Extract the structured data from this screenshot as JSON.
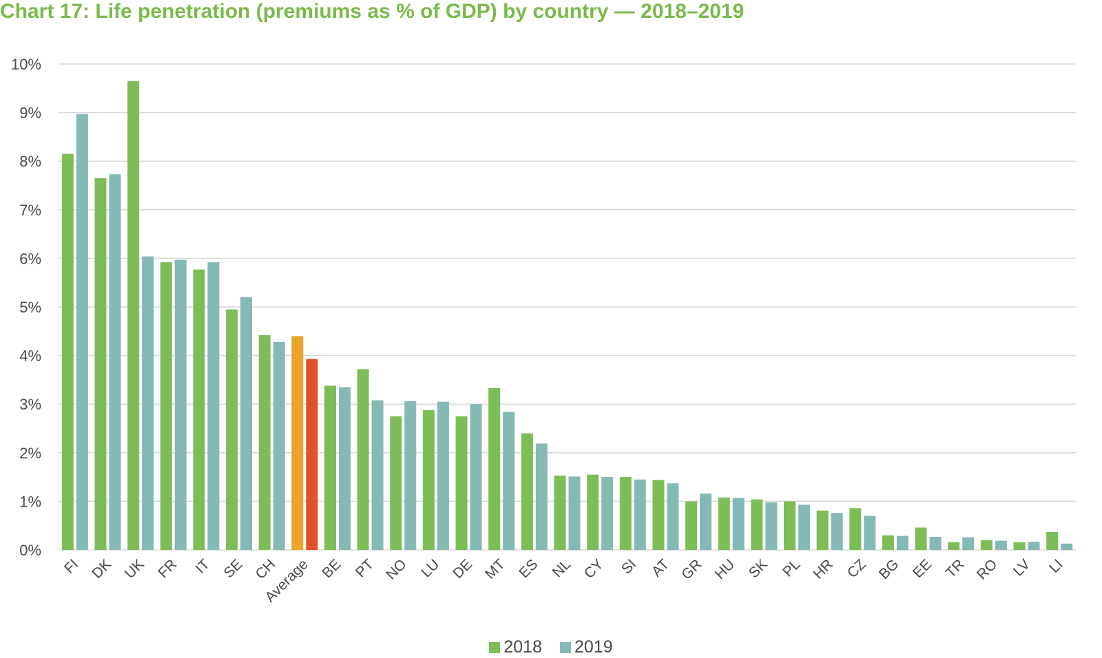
{
  "title": "Chart 17: Life penetration (premiums as % of GDP) by country — 2018–2019",
  "chart_data": {
    "type": "bar",
    "title": "Chart 17: Life penetration (premiums as % of GDP) by country — 2018–2019",
    "xlabel": "",
    "ylabel": "",
    "ylim": [
      0,
      10
    ],
    "yticks": [
      "0%",
      "1%",
      "2%",
      "3%",
      "4%",
      "5%",
      "6%",
      "7%",
      "8%",
      "9%",
      "10%"
    ],
    "grid": true,
    "legend_position": "bottom",
    "categories": [
      "FI",
      "DK",
      "UK",
      "FR",
      "IT",
      "SE",
      "CH",
      "Average",
      "BE",
      "PT",
      "NO",
      "LU",
      "DE",
      "MT",
      "ES",
      "NL",
      "CY",
      "SI",
      "AT",
      "GR",
      "HU",
      "SK",
      "PL",
      "HR",
      "CZ",
      "BG",
      "EE",
      "TR",
      "RO",
      "LV",
      "LI"
    ],
    "series": [
      {
        "name": "2018",
        "color": "#7dbd57",
        "values": [
          8.15,
          7.65,
          9.65,
          5.92,
          5.77,
          4.95,
          4.42,
          4.4,
          3.38,
          3.72,
          2.75,
          2.88,
          2.75,
          3.33,
          2.4,
          1.53,
          1.55,
          1.5,
          1.44,
          1.0,
          1.08,
          1.04,
          1.0,
          0.81,
          0.86,
          0.3,
          0.46,
          0.16,
          0.2,
          0.16,
          0.37
        ]
      },
      {
        "name": "2019",
        "color": "#84b9b6",
        "values": [
          8.97,
          7.73,
          6.04,
          5.97,
          5.92,
          5.2,
          4.28,
          3.93,
          3.35,
          3.08,
          3.06,
          3.05,
          3.0,
          2.84,
          2.19,
          1.51,
          1.5,
          1.45,
          1.37,
          1.16,
          1.07,
          0.98,
          0.93,
          0.76,
          0.7,
          0.29,
          0.27,
          0.26,
          0.19,
          0.17,
          0.13
        ]
      }
    ],
    "highlight": {
      "category": "Average",
      "colors": {
        "2018": "#e9a42b",
        "2019": "#e0502c"
      }
    }
  },
  "colors": {
    "title": "#7aba4a",
    "grid": "#d9d9d9",
    "text": "#4a4a4a"
  }
}
